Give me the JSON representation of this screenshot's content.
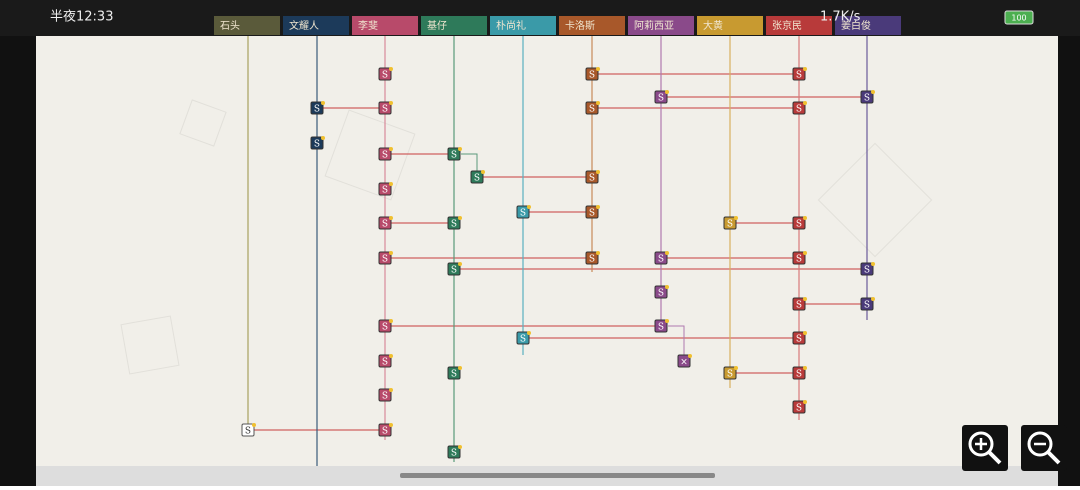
{
  "status_bar": {
    "time": "半夜12:33",
    "speed": "1.7K/s",
    "battery": "100"
  },
  "columns": [
    {
      "name": "石头",
      "nodes": [
        "S"
      ]
    },
    {
      "name": "文耀人",
      "nodes": [
        "S",
        "S"
      ]
    },
    {
      "name": "李斐",
      "nodes": [
        "S",
        "S",
        "S",
        "S",
        "S",
        "S",
        "S",
        "S",
        "S",
        "S"
      ]
    },
    {
      "name": "基仔",
      "nodes": [
        "S",
        "S",
        "S",
        "S",
        "S",
        "S"
      ]
    },
    {
      "name": "朴尚礼",
      "nodes": [
        "S",
        "S"
      ]
    },
    {
      "name": "卡洛斯",
      "nodes": [
        "S",
        "S",
        "S",
        "S",
        "S"
      ]
    },
    {
      "name": "阿莉西亚",
      "nodes": [
        "S",
        "S",
        "S",
        "S",
        "×"
      ]
    },
    {
      "name": "大黄",
      "nodes": [
        "S",
        "S"
      ]
    },
    {
      "name": "张京民",
      "nodes": [
        "S",
        "S",
        "S",
        "S",
        "S",
        "S",
        "S",
        "S"
      ]
    },
    {
      "name": "姜白俊",
      "nodes": [
        "S",
        "S",
        "S"
      ]
    }
  ]
}
